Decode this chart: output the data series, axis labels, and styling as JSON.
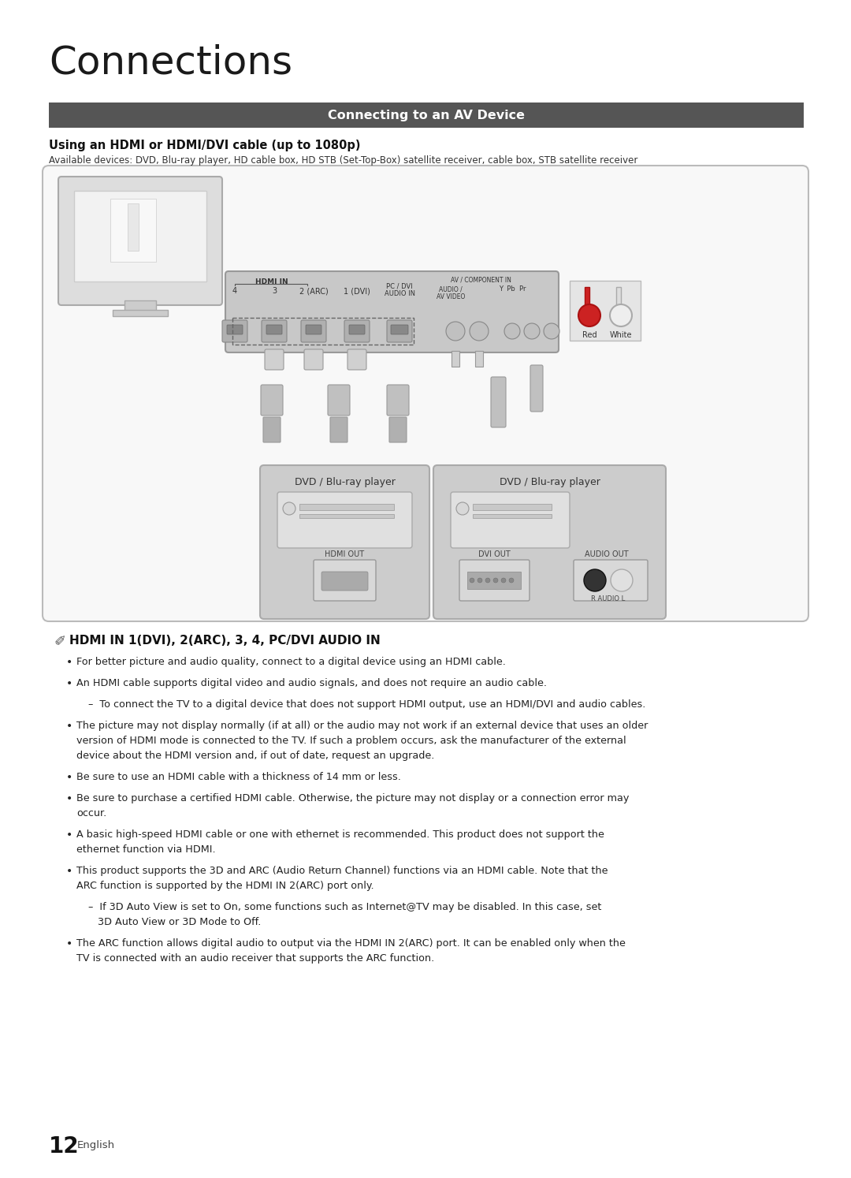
{
  "title": "Connections",
  "section_header": "Connecting to an AV Device",
  "section_header_bg": "#555555",
  "section_header_color": "#ffffff",
  "subsection_title": "Using an HDMI or HDMI/DVI cable (up to 1080p)",
  "available_devices": "Available devices: DVD, Blu-ray player, HD cable box, HD STB (Set-Top-Box) satellite receiver, cable box, STB satellite receiver",
  "note_header": "HDMI IN 1(DVI), 2(ARC), 3, 4, PC/DVI AUDIO IN",
  "bullet_points": [
    {
      "type": "bullet",
      "lines": [
        "For better picture and audio quality, connect to a digital device using an HDMI cable."
      ]
    },
    {
      "type": "bullet",
      "lines": [
        "An HDMI cable supports digital video and audio signals, and does not require an audio cable."
      ]
    },
    {
      "type": "sub",
      "lines": [
        "–  To connect the TV to a digital device that does not support HDMI output, use an HDMI/DVI and audio cables."
      ]
    },
    {
      "type": "bullet",
      "lines": [
        "The picture may not display normally (if at all) or the audio may not work if an external device that uses an older",
        "version of HDMI mode is connected to the TV. If such a problem occurs, ask the manufacturer of the external",
        "device about the HDMI version and, if out of date, request an upgrade."
      ]
    },
    {
      "type": "bullet",
      "lines": [
        "Be sure to use an HDMI cable with a thickness of 14 mm or less."
      ]
    },
    {
      "type": "bullet",
      "lines": [
        "Be sure to purchase a certified HDMI cable. Otherwise, the picture may not display or a connection error may",
        "occur."
      ]
    },
    {
      "type": "bullet",
      "lines": [
        "A basic high-speed HDMI cable or one with ethernet is recommended. This product does not support the",
        "ethernet function via HDMI."
      ]
    },
    {
      "type": "bullet",
      "lines": [
        "This product supports the 3D and ARC (Audio Return Channel) functions via an HDMI cable. Note that the",
        "ARC function is supported by the HDMI IN 2(ARC) port only."
      ]
    },
    {
      "type": "sub",
      "lines": [
        "–  If 3D Auto View is set to On, some functions such as Internet@TV may be disabled. In this case, set",
        "   3D Auto View or 3D Mode to Off."
      ]
    },
    {
      "type": "bullet",
      "lines": [
        "The ARC function allows digital audio to output via the HDMI IN 2(ARC) port. It can be enabled only when the",
        "TV is connected with an audio receiver that supports the ARC function."
      ]
    }
  ],
  "page_number": "12",
  "page_lang": "English",
  "bg_color": "#ffffff",
  "header_bg": "#555555",
  "header_fg": "#ffffff",
  "box_border": "#bbbbbb",
  "box_fill": "#f8f8f8",
  "diagram_panel_fill": "#d0d0d0",
  "dvd_box_fill": "#c8c8c8",
  "jack_box_fill": "#e5e5e5"
}
